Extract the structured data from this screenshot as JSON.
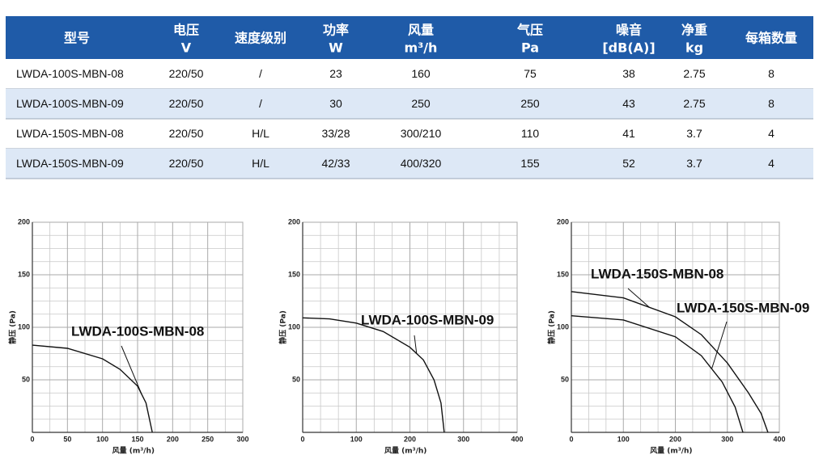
{
  "table": {
    "header": [
      [
        "型号"
      ],
      [
        "电压",
        "V"
      ],
      [
        "速度级别"
      ],
      [
        "功率",
        "W"
      ],
      [
        "风量",
        "m³/h"
      ],
      [
        "气压",
        "Pa"
      ],
      [
        "噪音",
        "[dB(A)]"
      ],
      [
        "净重",
        "kg"
      ],
      [
        "每箱数量"
      ]
    ],
    "rows": [
      [
        "LWDA-100S-MBN-08",
        "220/50",
        "/",
        "23",
        "160",
        "75",
        "38",
        "2.75",
        "8"
      ],
      [
        "LWDA-100S-MBN-09",
        "220/50",
        "/",
        "30",
        "250",
        "250",
        "43",
        "2.75",
        "8"
      ],
      [
        "LWDA-150S-MBN-08",
        "220/50",
        "H/L",
        "33/28",
        "300/210",
        "110",
        "41",
        "3.7",
        "4"
      ],
      [
        "LWDA-150S-MBN-09",
        "220/50",
        "H/L",
        "42/33",
        "400/320",
        "155",
        "52",
        "3.7",
        "4"
      ]
    ]
  },
  "chart_data": [
    {
      "type": "line",
      "x_label": "风量 (m³/h)",
      "y_label": "静压 (Pa)",
      "xlim": [
        0,
        300
      ],
      "xticks": [
        0,
        50,
        100,
        150,
        200,
        250,
        300
      ],
      "ylim": [
        0,
        200
      ],
      "yticks": [
        50,
        100,
        150,
        200
      ],
      "grid": true,
      "series": [
        {
          "name": "LWDA-100S-MBN-08",
          "color": "#111111",
          "x": [
            0,
            50,
            100,
            125,
            150,
            162,
            171
          ],
          "values": [
            83,
            80,
            70,
            60,
            44,
            28,
            0
          ]
        }
      ]
    },
    {
      "type": "line",
      "x_label": "风量 (m³/h)",
      "y_label": "静压 (Pa)",
      "xlim": [
        0,
        400
      ],
      "xticks": [
        0,
        100,
        200,
        300,
        400
      ],
      "ylim": [
        0,
        200
      ],
      "yticks": [
        50,
        100,
        150,
        200
      ],
      "grid": true,
      "series": [
        {
          "name": "LWDA-100S-MBN-09",
          "color": "#111111",
          "x": [
            0,
            50,
            100,
            150,
            200,
            225,
            245,
            258,
            264
          ],
          "values": [
            109,
            108,
            104,
            96,
            81,
            69,
            50,
            28,
            0
          ]
        }
      ]
    },
    {
      "type": "line",
      "x_label": "风量 (m³/h)",
      "y_label": "静压 (Pa)",
      "xlim": [
        0,
        400
      ],
      "xticks": [
        0,
        100,
        200,
        300,
        400
      ],
      "ylim": [
        0,
        200
      ],
      "yticks": [
        50,
        100,
        150,
        200
      ],
      "grid": true,
      "series": [
        {
          "name": "LWDA-150S-MBN-08",
          "color": "#111111",
          "x": [
            0,
            100,
            200,
            250,
            300,
            340,
            365,
            378
          ],
          "values": [
            134,
            128,
            110,
            93,
            66,
            38,
            18,
            0
          ]
        },
        {
          "name": "LWDA-150S-MBN-09",
          "color": "#111111",
          "x": [
            0,
            100,
            200,
            250,
            290,
            315,
            330
          ],
          "values": [
            111,
            107,
            91,
            73,
            48,
            24,
            0
          ]
        }
      ]
    }
  ]
}
